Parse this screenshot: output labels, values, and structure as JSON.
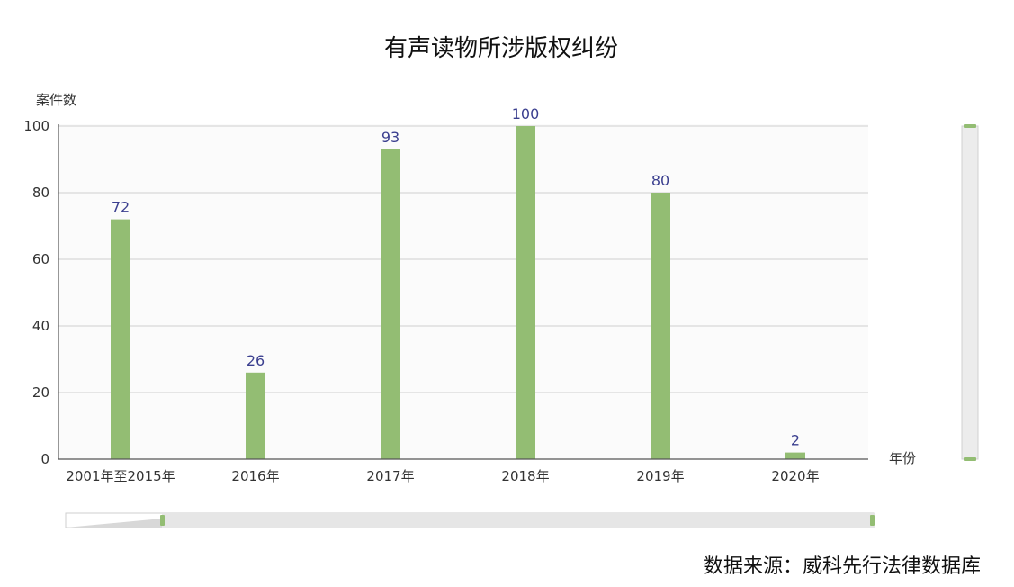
{
  "chart_data": {
    "type": "bar",
    "title": "有声读物所涉版权纠纷",
    "xlabel": "年份",
    "ylabel": "案件数",
    "categories": [
      "2001年至2015年",
      "2016年",
      "2017年",
      "2018年",
      "2019年",
      "2020年"
    ],
    "values": [
      72,
      26,
      93,
      100,
      80,
      2
    ],
    "data_labels": [
      "72",
      "26",
      "93",
      "100",
      "80",
      "2"
    ],
    "ylim": [
      0,
      100
    ],
    "yticks": [
      0,
      20,
      40,
      60,
      80,
      100
    ],
    "ytick_labels": [
      "0",
      "20",
      "40",
      "60",
      "80",
      "100"
    ],
    "grid": true,
    "bar_color": "#93bd73",
    "label_color": "#3b3f8f",
    "source": "数据来源：威科先行法律数据库"
  }
}
